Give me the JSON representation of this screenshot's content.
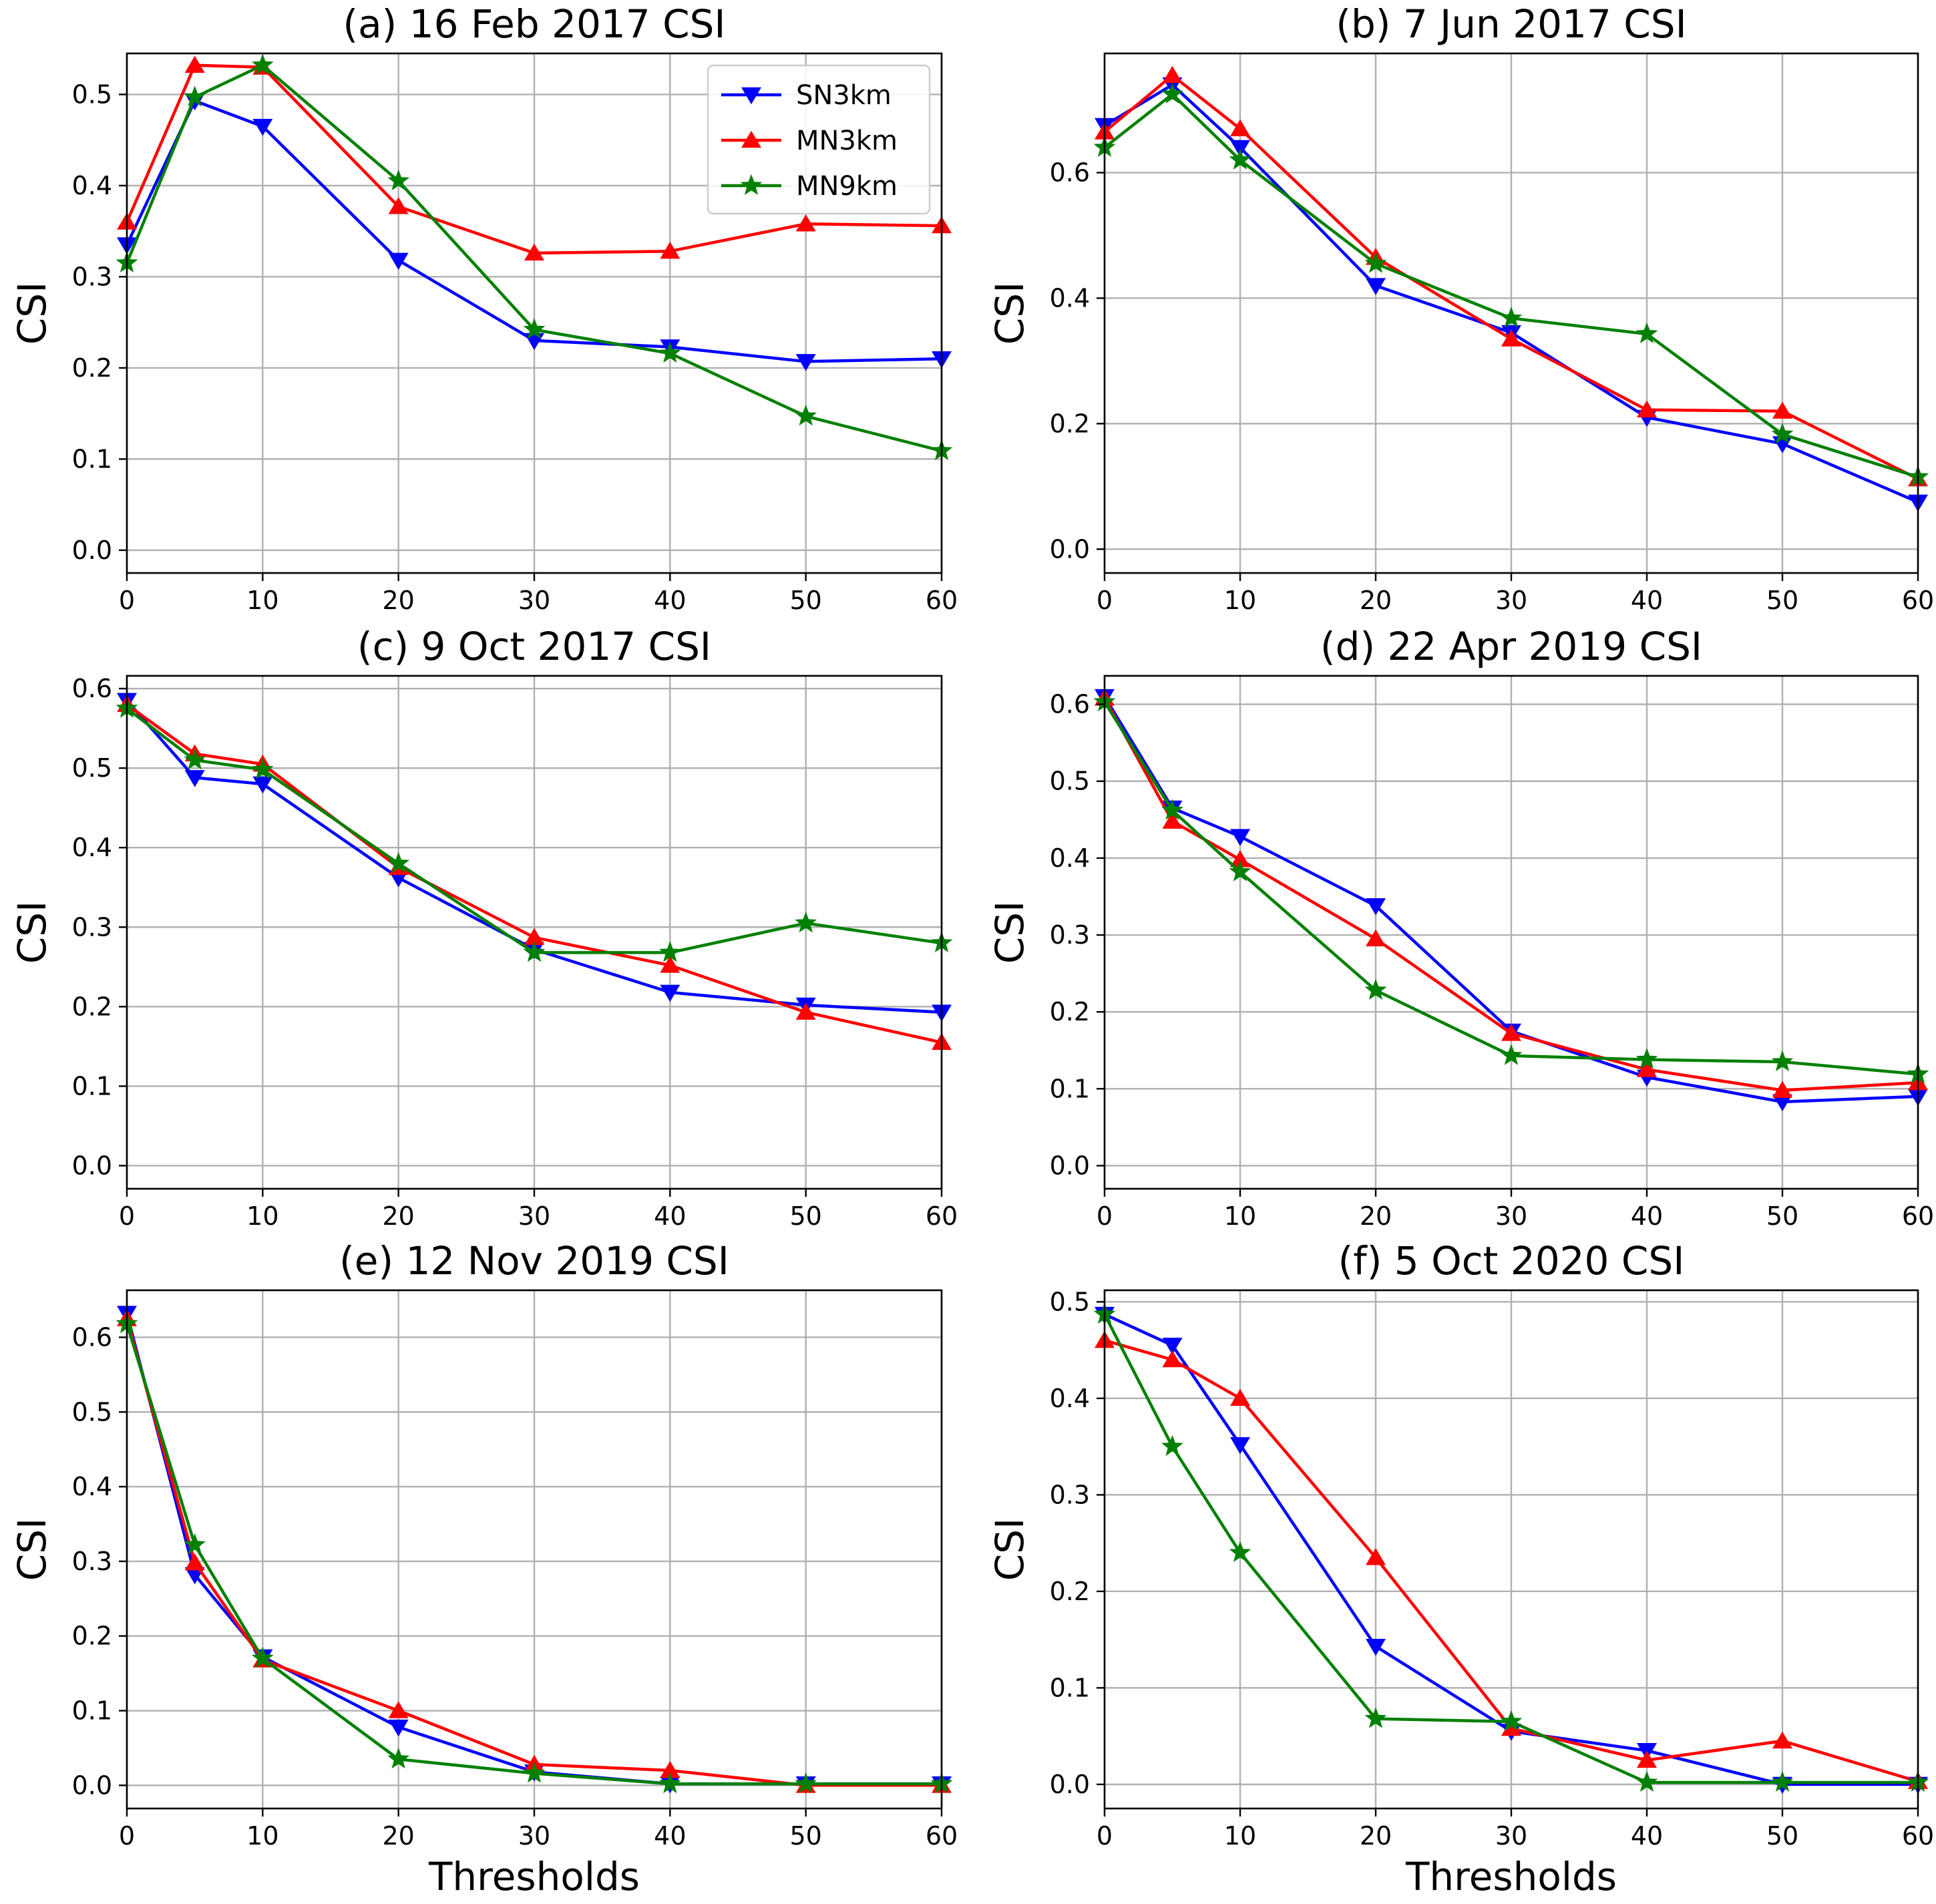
{
  "chart_data": [
    {
      "type": "line",
      "title": "(a) 16 Feb 2017 CSI",
      "xlabel": "",
      "ylabel": "CSI",
      "xlim": [
        0,
        60
      ],
      "ylim": [
        -0.025,
        0.545
      ],
      "xticks": [
        0,
        10,
        20,
        30,
        40,
        50,
        60
      ],
      "yticks": [
        0.0,
        0.1,
        0.2,
        0.3,
        0.4,
        0.5
      ],
      "grid": true,
      "legend": "top-right",
      "x": [
        0,
        5,
        10,
        20,
        30,
        40,
        50,
        60
      ],
      "series": [
        {
          "name": "SN3km",
          "color": "#0000ff",
          "marker": "triangle-down",
          "values": [
            0.335,
            0.493,
            0.465,
            0.318,
            0.23,
            0.223,
            0.207,
            0.21
          ]
        },
        {
          "name": "MN3km",
          "color": "#ff0000",
          "marker": "triangle-up",
          "values": [
            0.36,
            0.532,
            0.53,
            0.377,
            0.326,
            0.328,
            0.358,
            0.356
          ]
        },
        {
          "name": "MN9km",
          "color": "#008000",
          "marker": "star",
          "values": [
            0.315,
            0.497,
            0.532,
            0.405,
            0.242,
            0.216,
            0.147,
            0.109
          ]
        }
      ]
    },
    {
      "type": "line",
      "title": "(b) 7 Jun 2017 CSI",
      "xlabel": "",
      "ylabel": "CSI",
      "xlim": [
        0,
        60
      ],
      "ylim": [
        -0.038,
        0.79
      ],
      "xticks": [
        0,
        10,
        20,
        30,
        40,
        50,
        60
      ],
      "yticks": [
        0.0,
        0.2,
        0.4,
        0.6
      ],
      "grid": true,
      "x": [
        0,
        5,
        10,
        20,
        30,
        40,
        50,
        60
      ],
      "series": [
        {
          "name": "SN3km",
          "color": "#0000ff",
          "marker": "triangle-down",
          "values": [
            0.675,
            0.74,
            0.64,
            0.42,
            0.345,
            0.21,
            0.168,
            0.075
          ]
        },
        {
          "name": "MN3km",
          "color": "#ff0000",
          "marker": "triangle-up",
          "values": [
            0.665,
            0.755,
            0.67,
            0.465,
            0.335,
            0.222,
            0.22,
            0.112
          ]
        },
        {
          "name": "MN9km",
          "color": "#008000",
          "marker": "star",
          "values": [
            0.64,
            0.725,
            0.62,
            0.455,
            0.368,
            0.343,
            0.183,
            0.115
          ]
        }
      ]
    },
    {
      "type": "line",
      "title": "(c) 9 Oct 2017 CSI",
      "xlabel": "",
      "ylabel": "CSI",
      "xlim": [
        0,
        60
      ],
      "ylim": [
        -0.029,
        0.616
      ],
      "xticks": [
        0,
        10,
        20,
        30,
        40,
        50,
        60
      ],
      "yticks": [
        0.0,
        0.1,
        0.2,
        0.3,
        0.4,
        0.5,
        0.6
      ],
      "grid": true,
      "x": [
        0,
        5,
        10,
        20,
        30,
        40,
        50,
        60
      ],
      "series": [
        {
          "name": "SN3km",
          "color": "#0000ff",
          "marker": "triangle-down",
          "values": [
            0.585,
            0.488,
            0.48,
            0.362,
            0.272,
            0.218,
            0.202,
            0.193
          ]
        },
        {
          "name": "MN3km",
          "color": "#ff0000",
          "marker": "triangle-up",
          "values": [
            0.58,
            0.518,
            0.505,
            0.375,
            0.287,
            0.252,
            0.193,
            0.155
          ]
        },
        {
          "name": "MN9km",
          "color": "#008000",
          "marker": "star",
          "values": [
            0.575,
            0.51,
            0.498,
            0.38,
            0.268,
            0.268,
            0.305,
            0.28
          ]
        }
      ]
    },
    {
      "type": "line",
      "title": "(d) 22 Apr 2019 CSI",
      "xlabel": "",
      "ylabel": "CSI",
      "xlim": [
        0,
        60
      ],
      "ylim": [
        -0.03,
        0.637
      ],
      "xticks": [
        0,
        10,
        20,
        30,
        40,
        50,
        60
      ],
      "yticks": [
        0.0,
        0.1,
        0.2,
        0.3,
        0.4,
        0.5,
        0.6
      ],
      "grid": true,
      "x": [
        0,
        5,
        10,
        20,
        30,
        40,
        50,
        60
      ],
      "series": [
        {
          "name": "SN3km",
          "color": "#0000ff",
          "marker": "triangle-down",
          "values": [
            0.61,
            0.465,
            0.428,
            0.338,
            0.175,
            0.115,
            0.083,
            0.09
          ]
        },
        {
          "name": "MN3km",
          "color": "#ff0000",
          "marker": "triangle-up",
          "values": [
            0.608,
            0.448,
            0.398,
            0.295,
            0.172,
            0.125,
            0.098,
            0.108
          ]
        },
        {
          "name": "MN9km",
          "color": "#008000",
          "marker": "star",
          "values": [
            0.603,
            0.462,
            0.382,
            0.228,
            0.143,
            0.138,
            0.135,
            0.119
          ]
        }
      ]
    },
    {
      "type": "line",
      "title": "(e) 12 Nov 2019 CSI",
      "xlabel": "Thresholds",
      "ylabel": "CSI",
      "xlim": [
        0,
        60
      ],
      "ylim": [
        -0.031,
        0.663
      ],
      "xticks": [
        0,
        10,
        20,
        30,
        40,
        50,
        60
      ],
      "yticks": [
        0.0,
        0.1,
        0.2,
        0.3,
        0.4,
        0.5,
        0.6
      ],
      "grid": true,
      "x": [
        0,
        5,
        10,
        20,
        30,
        40,
        50,
        60
      ],
      "series": [
        {
          "name": "SN3km",
          "color": "#0000ff",
          "marker": "triangle-down",
          "values": [
            0.632,
            0.282,
            0.172,
            0.078,
            0.018,
            0.002,
            0.002,
            0.002
          ]
        },
        {
          "name": "MN3km",
          "color": "#ff0000",
          "marker": "triangle-up",
          "values": [
            0.625,
            0.298,
            0.168,
            0.1,
            0.028,
            0.02,
            0.0,
            0.0
          ]
        },
        {
          "name": "MN9km",
          "color": "#008000",
          "marker": "star",
          "values": [
            0.618,
            0.322,
            0.17,
            0.035,
            0.016,
            0.002,
            0.002,
            0.002
          ]
        }
      ]
    },
    {
      "type": "line",
      "title": "(f) 5 Oct 2020 CSI",
      "xlabel": "Thresholds",
      "ylabel": "CSI",
      "xlim": [
        0,
        60
      ],
      "ylim": [
        -0.025,
        0.512
      ],
      "xticks": [
        0,
        10,
        20,
        30,
        40,
        50,
        60
      ],
      "yticks": [
        0.0,
        0.1,
        0.2,
        0.3,
        0.4,
        0.5
      ],
      "grid": true,
      "x": [
        0,
        5,
        10,
        20,
        30,
        40,
        50,
        60
      ],
      "series": [
        {
          "name": "SN3km",
          "color": "#0000ff",
          "marker": "triangle-down",
          "values": [
            0.487,
            0.455,
            0.352,
            0.143,
            0.055,
            0.035,
            0.0,
            0.0
          ]
        },
        {
          "name": "MN3km",
          "color": "#ff0000",
          "marker": "triangle-up",
          "values": [
            0.46,
            0.44,
            0.4,
            0.235,
            0.058,
            0.025,
            0.045,
            0.003
          ]
        },
        {
          "name": "MN9km",
          "color": "#008000",
          "marker": "star",
          "values": [
            0.487,
            0.35,
            0.24,
            0.068,
            0.065,
            0.002,
            0.002,
            0.002
          ]
        }
      ]
    }
  ]
}
